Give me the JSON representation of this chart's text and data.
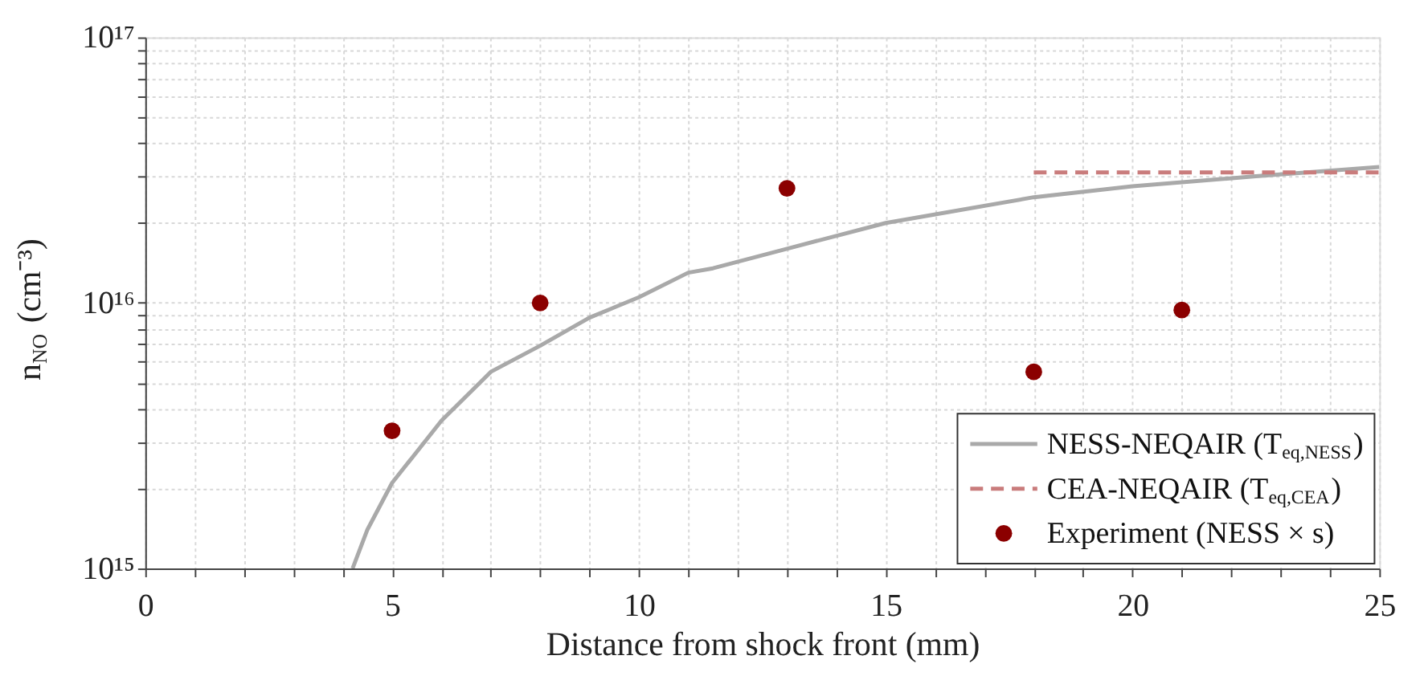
{
  "chart_data": {
    "type": "line",
    "xlabel": "Distance from shock front (mm)",
    "ylabel": "n$_{NO}$ (cm⁻³)",
    "log": "y",
    "grid": true,
    "legend": "bottom right",
    "xlim": [
      0,
      25
    ],
    "xticks": [
      0,
      {
        "value": 1,
        "label": null
      },
      {
        "value": 2,
        "label": null
      },
      {
        "value": 3,
        "label": null
      },
      {
        "value": 4,
        "label": null
      },
      5,
      {
        "value": 6,
        "label": null
      },
      {
        "value": 7,
        "label": null
      },
      {
        "value": 8,
        "label": null
      },
      {
        "value": 9,
        "label": null
      },
      10,
      {
        "value": 11,
        "label": null
      },
      {
        "value": 12,
        "label": null
      },
      {
        "value": 13,
        "label": null
      },
      {
        "value": 14,
        "label": null
      },
      15,
      {
        "value": 16,
        "label": null
      },
      {
        "value": 17,
        "label": null
      },
      {
        "value": 18,
        "label": null
      },
      {
        "value": 19,
        "label": null
      },
      20,
      {
        "value": 21,
        "label": null
      },
      {
        "value": 22,
        "label": null
      },
      {
        "value": 23,
        "label": null
      },
      {
        "value": 24,
        "label": null
      },
      25
    ],
    "ylim": [
      1000000000000000.0,
      1e+17
    ],
    "yticks": [
      {
        "value": 1000000000000000.0,
        "label": "10¹⁵"
      },
      {
        "value": 2000000000000000.0,
        "label": null
      },
      {
        "value": 3000000000000000.0,
        "label": null
      },
      {
        "value": 4000000000000000.0,
        "label": null
      },
      {
        "value": 5000000000000000.0,
        "label": null
      },
      {
        "value": 6000000000000000.0,
        "label": null
      },
      {
        "value": 7000000000000000.0,
        "label": null
      },
      {
        "value": 8000000000000000.0,
        "label": null
      },
      {
        "value": 9000000000000000.0,
        "label": null
      },
      {
        "value": 1e+16,
        "label": "10¹⁶"
      },
      {
        "value": 2e+16,
        "label": null
      },
      {
        "value": 3e+16,
        "label": null
      },
      {
        "value": 4e+16,
        "label": null
      },
      {
        "value": 5e+16,
        "label": null
      },
      {
        "value": 6e+16,
        "label": null
      },
      {
        "value": 7e+16,
        "label": null
      },
      {
        "value": 8e+16,
        "label": null
      },
      {
        "value": 9e+16,
        "label": null
      },
      {
        "value": 1e+17,
        "label": "10¹⁷"
      }
    ],
    "series": [
      {
        "name": "NESS-NEQAIR (T$_{eq,NESS}$)",
        "type": "line",
        "line_style": "solid",
        "color": "#a9a9a9",
        "x": [
          4.2,
          4.5,
          5,
          6,
          7,
          8,
          9,
          10,
          11,
          11.5,
          13,
          15,
          18,
          20,
          22.5,
          25
        ],
        "values": [
          1000000000000000.0,
          1400000000000000.0,
          2100000000000000.0,
          3600000000000000.0,
          5500000000000000.0,
          6900000000000000.0,
          8800000000000000.0,
          1.05e+16,
          1.3e+16,
          1.35e+16,
          1.6e+16,
          2e+16,
          2.5e+16,
          2.75e+16,
          3e+16,
          3.25e+16
        ]
      },
      {
        "name": "CEA-NEQAIR (T$_{eq,CEA}$)",
        "type": "line",
        "line_style": "dashed",
        "color": "#c97c7c",
        "x": [
          18,
          25
        ],
        "values": [
          3.1e+16,
          3.1e+16
        ]
      },
      {
        "name": "Experiment (NESS × s)",
        "type": "scatter",
        "marker": "circle",
        "color": "#8b0000",
        "x": [
          5,
          8,
          13,
          18,
          21
        ],
        "values": [
          3300000000000000.0,
          1e+16,
          2.7e+16,
          5500000000000000.0,
          9400000000000000.0
        ]
      }
    ]
  }
}
